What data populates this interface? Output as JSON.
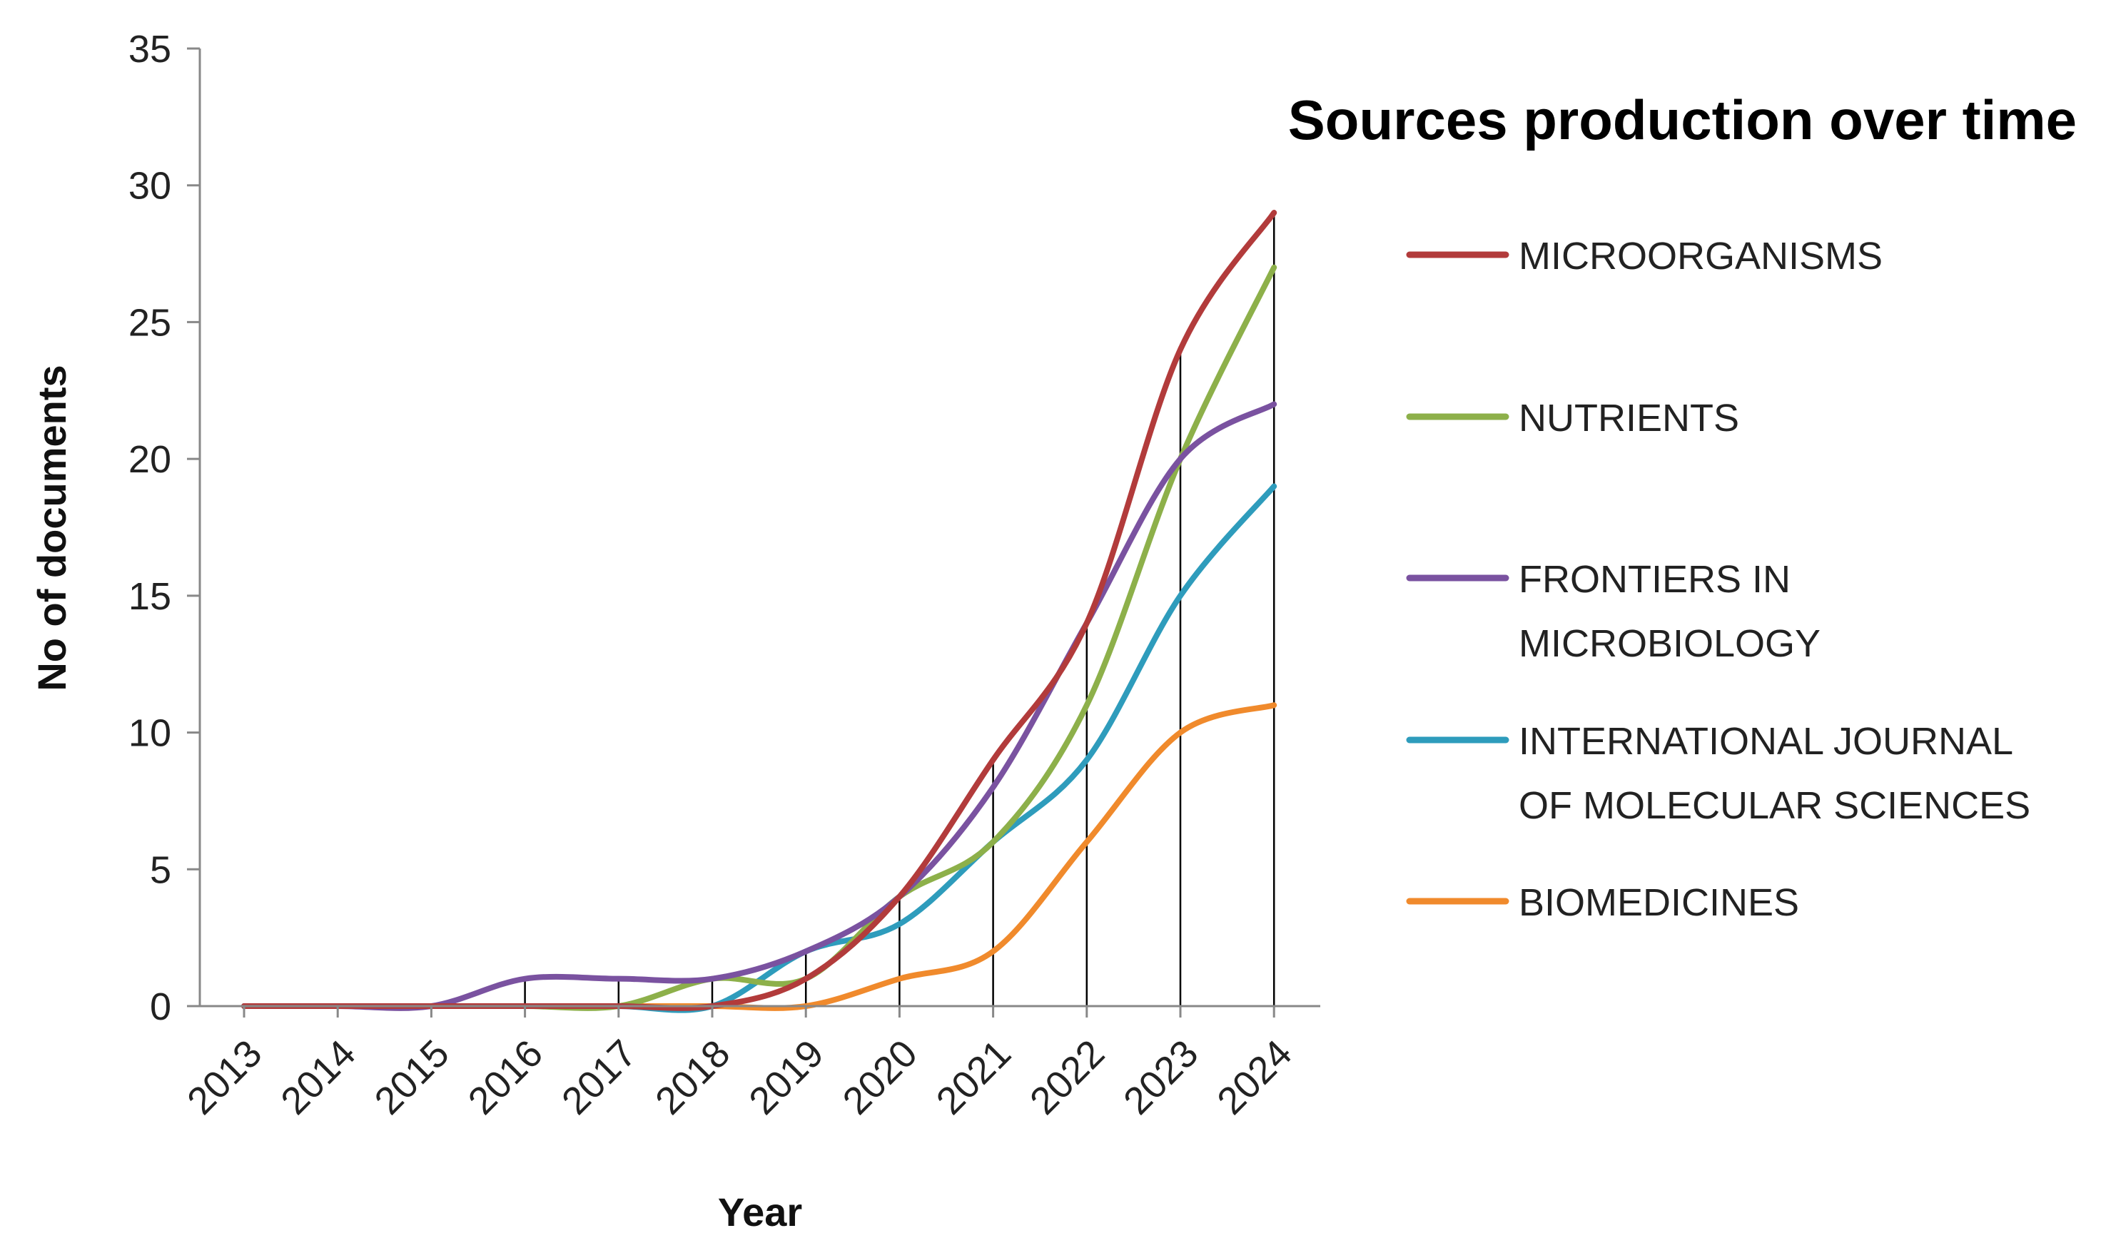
{
  "chart_data": {
    "type": "line",
    "title": "Sources production over time",
    "xlabel": "Year",
    "ylabel": "No of documents",
    "ylim": [
      0,
      35
    ],
    "yticks": [
      0,
      5,
      10,
      15,
      20,
      25,
      30,
      35
    ],
    "x": [
      "2013",
      "2014",
      "2015",
      "2016",
      "2017",
      "2018",
      "2019",
      "2020",
      "2021",
      "2022",
      "2023",
      "2024"
    ],
    "legend_position": "right",
    "series": [
      {
        "name": "MICROORGANISMS",
        "legend_lines": [
          "MICROORGANISMS"
        ],
        "color": "#B23B3B",
        "values": [
          0,
          0,
          0,
          0,
          0,
          0,
          1,
          4,
          9,
          14,
          24,
          29
        ]
      },
      {
        "name": "NUTRIENTS",
        "legend_lines": [
          "NUTRIENTS"
        ],
        "color": "#8DB04A",
        "values": [
          0,
          0,
          0,
          0,
          0,
          1,
          1,
          4,
          6,
          11,
          20,
          27
        ]
      },
      {
        "name": "FRONTIERS IN MICROBIOLOGY",
        "legend_lines": [
          "FRONTIERS IN",
          "MICROBIOLOGY"
        ],
        "color": "#7A52A0",
        "values": [
          0,
          0,
          0,
          1,
          1,
          1,
          2,
          4,
          8,
          14,
          20,
          22
        ]
      },
      {
        "name": "INTERNATIONAL JOURNAL OF MOLECULAR SCIENCES",
        "legend_lines": [
          "INTERNATIONAL JOURNAL",
          "OF MOLECULAR SCIENCES"
        ],
        "color": "#2E9CBC",
        "values": [
          0,
          0,
          0,
          0,
          0,
          0,
          2,
          3,
          6,
          9,
          15,
          19
        ]
      },
      {
        "name": "BIOMEDICINES",
        "legend_lines": [
          "BIOMEDICINES"
        ],
        "color": "#F08A2C",
        "values": [
          0,
          0,
          0,
          0,
          0,
          0,
          0,
          1,
          2,
          6,
          10,
          11
        ]
      }
    ]
  }
}
